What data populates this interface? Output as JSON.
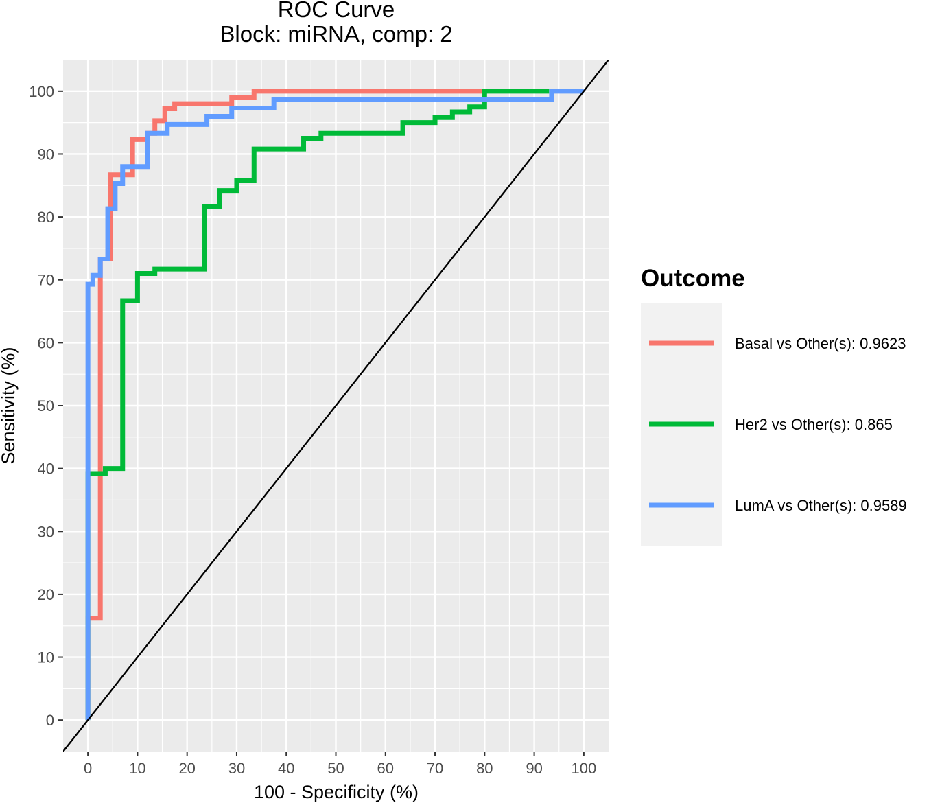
{
  "chart_data": {
    "type": "line",
    "title": "ROC Curve",
    "subtitle": "Block: miRNA, comp: 2",
    "xlabel": "100 - Specificity (%)",
    "ylabel": "Sensitivity (%)",
    "xlim": [
      -5,
      105
    ],
    "ylim": [
      -5,
      105
    ],
    "x_ticks": [
      0,
      10,
      20,
      30,
      40,
      50,
      60,
      70,
      80,
      90,
      100
    ],
    "y_ticks": [
      0,
      10,
      20,
      30,
      40,
      50,
      60,
      70,
      80,
      90,
      100
    ],
    "grid": true,
    "background": "#EBEBEB",
    "legend": {
      "title": "Outcome",
      "position": "right"
    },
    "reference_line": {
      "x": [
        -5,
        105
      ],
      "y": [
        -5,
        105
      ],
      "color": "#000000"
    },
    "series": [
      {
        "name": "Basal vs Other(s): 0.9623",
        "color": "#F8766D",
        "x": [
          0,
          0,
          2.5,
          2.5,
          4.5,
          4.5,
          9,
          9,
          12,
          12,
          13.5,
          13.5,
          15.5,
          15.5,
          17.5,
          17.5,
          29,
          29,
          33.5,
          33.5,
          80
        ],
        "y": [
          0,
          16.2,
          16.2,
          73.3,
          73.3,
          86.7,
          86.7,
          92.3,
          92.3,
          93.3,
          93.3,
          95.3,
          95.3,
          97.2,
          97.2,
          98,
          98,
          99,
          99,
          100,
          100
        ]
      },
      {
        "name": "Her2 vs Other(s): 0.865",
        "color": "#00BA38",
        "x": [
          0,
          0,
          3.5,
          3.5,
          7,
          7,
          10,
          10,
          13.5,
          13.5,
          23.5,
          23.5,
          26.5,
          26.5,
          30,
          30,
          33.5,
          33.5,
          43.5,
          43.5,
          47,
          47,
          63.5,
          63.5,
          70,
          70,
          73.5,
          73.5,
          77,
          77,
          80,
          80,
          93
        ],
        "y": [
          0,
          39.2,
          39.2,
          40,
          40,
          66.7,
          66.7,
          71,
          71,
          71.7,
          71.7,
          81.7,
          81.7,
          84.2,
          84.2,
          85.8,
          85.8,
          90.8,
          90.8,
          92.5,
          92.5,
          93.3,
          93.3,
          95,
          95,
          95.8,
          95.8,
          96.7,
          96.7,
          97.5,
          97.5,
          100,
          100
        ]
      },
      {
        "name": "LumA vs Other(s): 0.9589",
        "color": "#619CFF",
        "x": [
          0,
          0,
          1,
          1,
          2.5,
          2.5,
          4,
          4,
          5.5,
          5.5,
          7,
          7,
          12,
          12,
          16,
          16,
          24,
          24,
          29,
          29,
          37.5,
          37.5,
          93.5,
          93.5,
          100
        ],
        "y": [
          0,
          69.3,
          69.3,
          70.7,
          70.7,
          73.3,
          73.3,
          81.3,
          81.3,
          85.3,
          85.3,
          88,
          88,
          93.3,
          93.3,
          94.7,
          94.7,
          96,
          96,
          97.3,
          97.3,
          98.7,
          98.7,
          100,
          100
        ]
      }
    ]
  }
}
